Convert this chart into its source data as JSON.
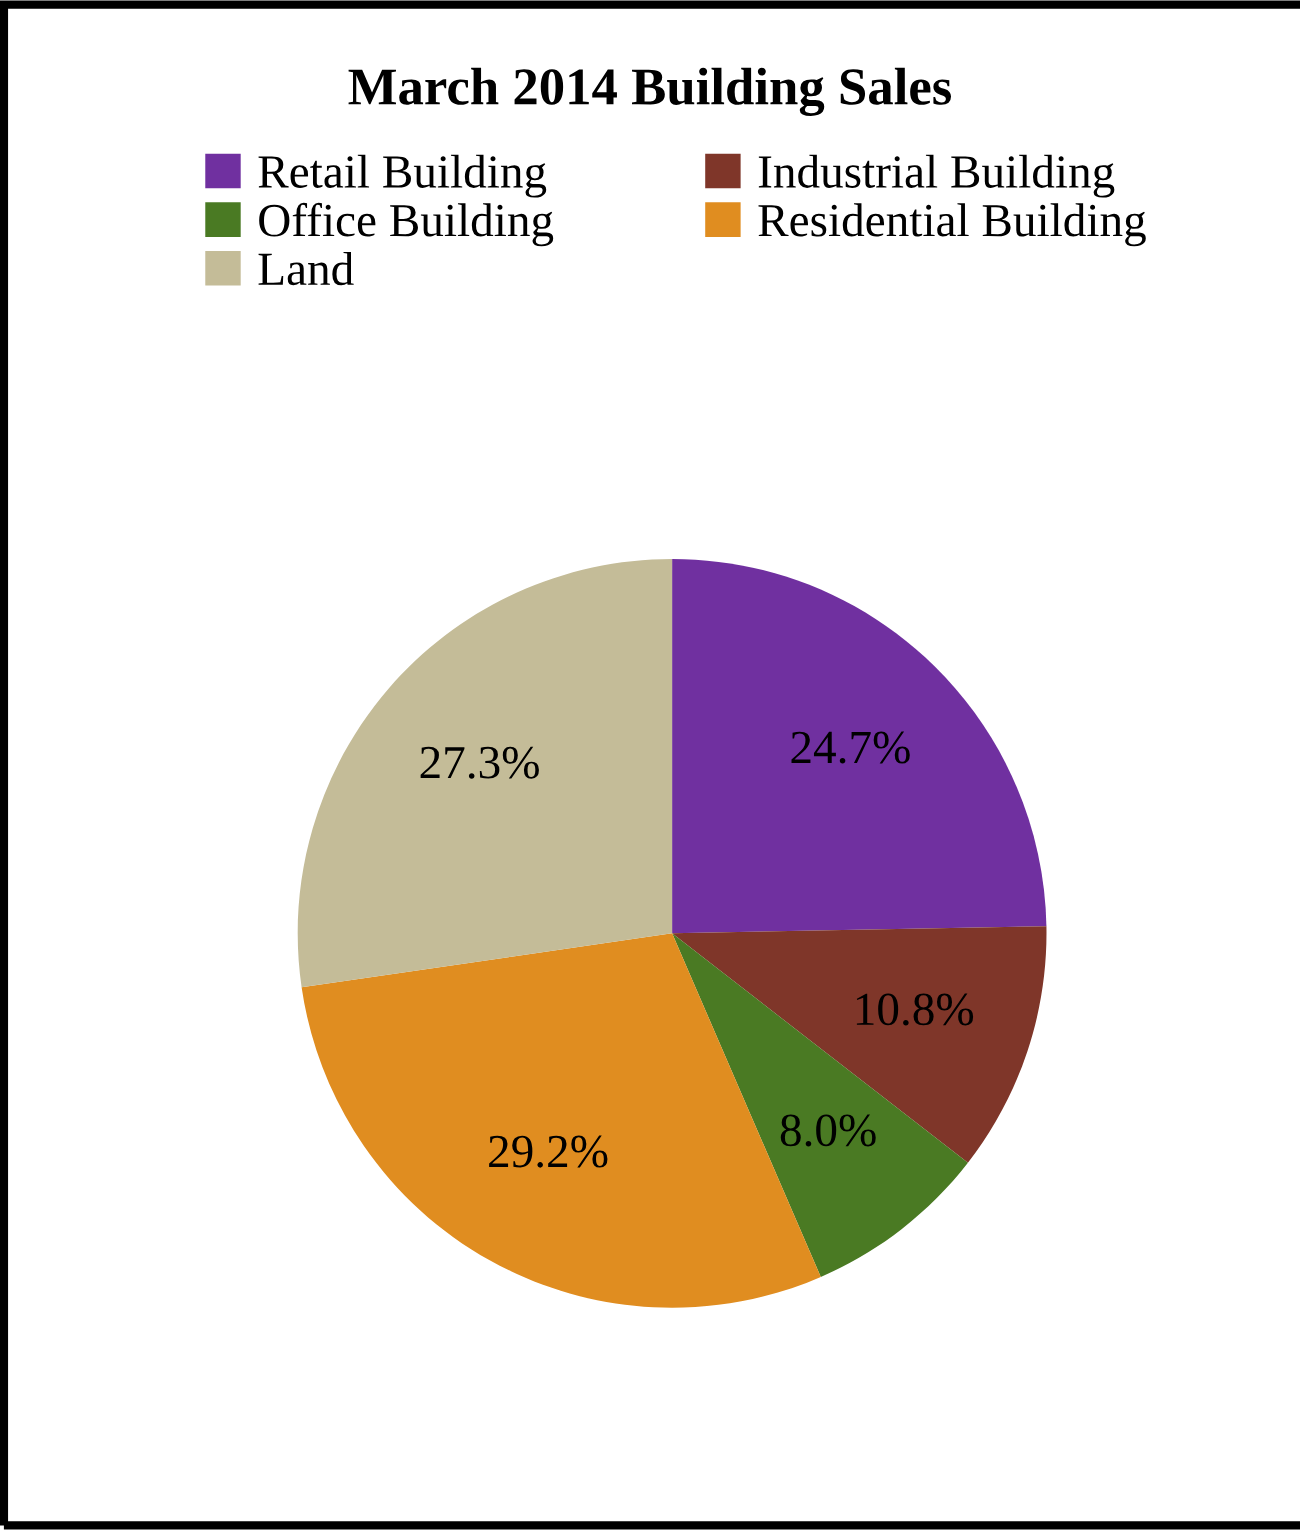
{
  "chart_data": {
    "type": "pie",
    "title": "March 2014 Building Sales",
    "categories": [
      "Retail Building",
      "Industrial Building",
      "Office Building",
      "Residential Building",
      "Land"
    ],
    "values": [
      24.7,
      10.8,
      8.0,
      29.2,
      27.3
    ],
    "value_labels": [
      "24.7%",
      "10.8%",
      "8.0%",
      "29.2%",
      "27.3%"
    ],
    "colors": [
      "#7030a0",
      "#7f3629",
      "#4a7a23",
      "#e08d20",
      "#c4bc98"
    ],
    "legend": "top"
  }
}
